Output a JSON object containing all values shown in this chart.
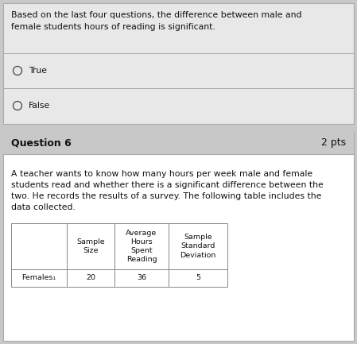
{
  "question5_text_line1": "Based on the last four questions, the difference between male and",
  "question5_text_line2": "female students hours of reading is significant.",
  "option_true": "True",
  "option_false": "False",
  "question6_label": "Question 6",
  "question6_pts": "2 pts",
  "question6_body_line1": "A teacher wants to know how many hours per week male and female",
  "question6_body_line2": "students read and whether there is a significant difference between the",
  "question6_body_line3": "two. He records the results of a survey. The following table includes the",
  "question6_body_line4": "data collected.",
  "table_col0_header": "",
  "table_col1_header": "Sample\nSize",
  "table_col2_header": "Average\nHours\nSpent\nReading",
  "table_col3_header": "Sample\nStandard\nDeviation",
  "table_row1": [
    "Females₁",
    "20",
    "36",
    "5"
  ],
  "bg_color": "#c8c8c8",
  "box_bg": "#e8e8e8",
  "white_bg": "#ffffff",
  "border_color": "#aaaaaa",
  "text_color": "#111111",
  "q6_header_bg": "#c8c8c8",
  "q6_body_bg": "#e8e8e8",
  "font_size_body": 7.8,
  "font_size_header": 9.0,
  "font_size_table": 6.8,
  "font_size_option": 7.8
}
